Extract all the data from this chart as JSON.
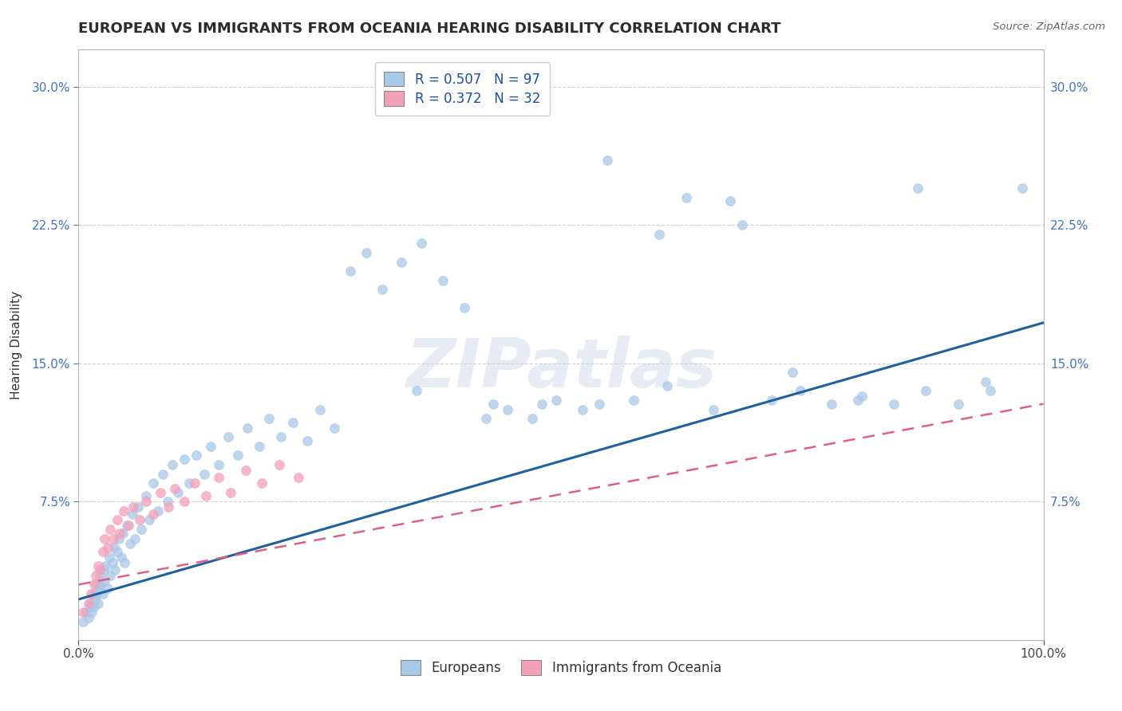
{
  "title": "EUROPEAN VS IMMIGRANTS FROM OCEANIA HEARING DISABILITY CORRELATION CHART",
  "source": "Source: ZipAtlas.com",
  "ylabel": "Hearing Disability",
  "watermark": "ZIPatlas",
  "xlim": [
    0.0,
    1.0
  ],
  "ylim": [
    0.0,
    0.32
  ],
  "ytick_positions": [
    0.075,
    0.15,
    0.225,
    0.3
  ],
  "ytick_labels": [
    "7.5%",
    "15.0%",
    "22.5%",
    "30.0%"
  ],
  "r_european": 0.507,
  "n_european": 97,
  "r_oceania": 0.372,
  "n_oceania": 32,
  "color_european": "#a8c8e8",
  "color_oceania": "#f4a0b8",
  "color_trend_european": "#2060a0",
  "color_trend_oceania": "#e06080",
  "background_color": "#ffffff",
  "grid_color": "#d0d0d0",
  "title_fontsize": 13,
  "label_fontsize": 11,
  "tick_fontsize": 11,
  "legend_fontsize": 12,
  "eu_x": [
    0.005,
    0.008,
    0.01,
    0.012,
    0.013,
    0.014,
    0.015,
    0.016,
    0.017,
    0.018,
    0.019,
    0.02,
    0.021,
    0.022,
    0.023,
    0.025,
    0.026,
    0.027,
    0.028,
    0.03,
    0.032,
    0.033,
    0.035,
    0.037,
    0.038,
    0.04,
    0.042,
    0.044,
    0.046,
    0.048,
    0.05,
    0.053,
    0.056,
    0.058,
    0.062,
    0.065,
    0.07,
    0.073,
    0.077,
    0.082,
    0.087,
    0.092,
    0.097,
    0.103,
    0.11,
    0.115,
    0.122,
    0.13,
    0.137,
    0.145,
    0.155,
    0.165,
    0.175,
    0.187,
    0.197,
    0.21,
    0.222,
    0.237,
    0.25,
    0.265,
    0.282,
    0.298,
    0.315,
    0.335,
    0.355,
    0.378,
    0.4,
    0.422,
    0.445,
    0.47,
    0.495,
    0.522,
    0.548,
    0.575,
    0.602,
    0.63,
    0.658,
    0.688,
    0.718,
    0.748,
    0.78,
    0.812,
    0.845,
    0.878,
    0.912,
    0.945,
    0.978,
    0.35,
    0.48,
    0.61,
    0.74,
    0.87,
    0.54,
    0.675,
    0.808,
    0.94,
    0.43
  ],
  "eu_y": [
    0.01,
    0.015,
    0.012,
    0.018,
    0.02,
    0.015,
    0.025,
    0.018,
    0.022,
    0.03,
    0.025,
    0.02,
    0.028,
    0.035,
    0.03,
    0.025,
    0.038,
    0.032,
    0.04,
    0.028,
    0.045,
    0.035,
    0.042,
    0.05,
    0.038,
    0.048,
    0.055,
    0.045,
    0.058,
    0.042,
    0.062,
    0.052,
    0.068,
    0.055,
    0.072,
    0.06,
    0.078,
    0.065,
    0.085,
    0.07,
    0.09,
    0.075,
    0.095,
    0.08,
    0.098,
    0.085,
    0.1,
    0.09,
    0.105,
    0.095,
    0.11,
    0.1,
    0.115,
    0.105,
    0.12,
    0.11,
    0.118,
    0.108,
    0.125,
    0.115,
    0.2,
    0.21,
    0.19,
    0.205,
    0.215,
    0.195,
    0.18,
    0.12,
    0.125,
    0.12,
    0.13,
    0.125,
    0.26,
    0.13,
    0.22,
    0.24,
    0.125,
    0.225,
    0.13,
    0.135,
    0.128,
    0.132,
    0.128,
    0.135,
    0.128,
    0.135,
    0.245,
    0.135,
    0.128,
    0.138,
    0.145,
    0.245,
    0.128,
    0.238,
    0.13,
    0.14,
    0.128
  ],
  "oc_x": [
    0.005,
    0.01,
    0.013,
    0.016,
    0.018,
    0.02,
    0.022,
    0.025,
    0.027,
    0.03,
    0.033,
    0.036,
    0.04,
    0.043,
    0.047,
    0.052,
    0.057,
    0.063,
    0.07,
    0.077,
    0.085,
    0.093,
    0.1,
    0.11,
    0.12,
    0.132,
    0.145,
    0.158,
    0.173,
    0.19,
    0.208,
    0.228
  ],
  "oc_y": [
    0.015,
    0.02,
    0.025,
    0.03,
    0.035,
    0.04,
    0.038,
    0.048,
    0.055,
    0.05,
    0.06,
    0.055,
    0.065,
    0.058,
    0.07,
    0.062,
    0.072,
    0.065,
    0.075,
    0.068,
    0.08,
    0.072,
    0.082,
    0.075,
    0.085,
    0.078,
    0.088,
    0.08,
    0.092,
    0.085,
    0.095,
    0.088
  ],
  "eu_trend_x0": 0.0,
  "eu_trend_y0": 0.022,
  "eu_trend_x1": 1.0,
  "eu_trend_y1": 0.172,
  "oc_trend_x0": 0.0,
  "oc_trend_y0": 0.03,
  "oc_trend_x1": 1.0,
  "oc_trend_y1": 0.128
}
